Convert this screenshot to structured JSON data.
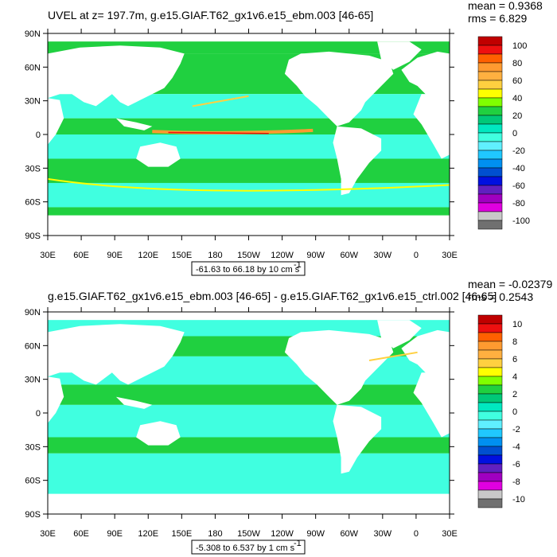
{
  "panels": [
    {
      "title": "UVEL at z= 197.7m, g.e15.GIAF.T62_gx1v6.e15_ebm.003 [46-65]",
      "mean_label": "mean = 0.9368",
      "rms_label": "rms = 6.829",
      "range_label": "-61.63 to 66.18 by 10 cm s",
      "range_sup": "-1",
      "colorbar_labels": [
        "100",
        "80",
        "60",
        "40",
        "20",
        "0",
        "-20",
        "-40",
        "-60",
        "-80",
        "-100"
      ]
    },
    {
      "title": "g.e15.GIAF.T62_gx1v6.e15_ebm.003 [46-65] - g.e15.GIAF.T62_gx1v6.e15_ctrl.002 [46-65]",
      "mean_label": "mean = -0.02379",
      "rms_label": "rms = 0.2543",
      "range_label": "-5.308 to 6.537 by 1 cm s",
      "range_sup": "-1",
      "colorbar_labels": [
        "10",
        "8",
        "6",
        "4",
        "2",
        "0",
        "-2",
        "-4",
        "-6",
        "-8",
        "-10"
      ]
    }
  ],
  "lat_labels": [
    "90N",
    "60N",
    "30N",
    "0",
    "30S",
    "60S",
    "90S"
  ],
  "lon_labels": [
    "30E",
    "60E",
    "90E",
    "120E",
    "150E",
    "180",
    "150W",
    "120W",
    "90W",
    "60W",
    "30W",
    "0",
    "30E"
  ],
  "colors": {
    "palette": [
      "#c00000",
      "#ee1010",
      "#ff6000",
      "#ff9a30",
      "#ffb040",
      "#ffd040",
      "#ffff00",
      "#80ff00",
      "#20d040",
      "#00c878",
      "#00e8c0",
      "#40ffe0",
      "#60f0ff",
      "#20c8ff",
      "#0090f0",
      "#0050d0",
      "#0010e0",
      "#6020c0",
      "#a000c0",
      "#e000e0",
      "#c8c8c8",
      "#707070"
    ],
    "ocean": "#20d040",
    "ocean_light": "#40ffe0"
  }
}
